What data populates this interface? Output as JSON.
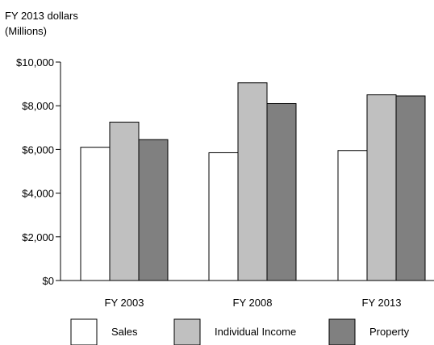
{
  "chart_data": {
    "type": "bar",
    "ylabel_lines": [
      "FY 2013 dollars",
      "(Millions)"
    ],
    "categories": [
      "FY 2003",
      "FY 2008",
      "FY 2013"
    ],
    "yticks": [
      "$0",
      "$2,000",
      "$4,000",
      "$6,000",
      "$8,000",
      "$10,000"
    ],
    "ylim": [
      0,
      10000
    ],
    "grid": false,
    "legend_position": "bottom",
    "series": [
      {
        "name": "Sales",
        "color": "#ffffff",
        "values": [
          6100,
          5850,
          5950
        ]
      },
      {
        "name": "Individual Income",
        "color": "#c0c0c0",
        "values": [
          7250,
          9050,
          8500
        ]
      },
      {
        "name": "Property",
        "color": "#808080",
        "values": [
          6450,
          8100,
          8450
        ]
      }
    ]
  }
}
